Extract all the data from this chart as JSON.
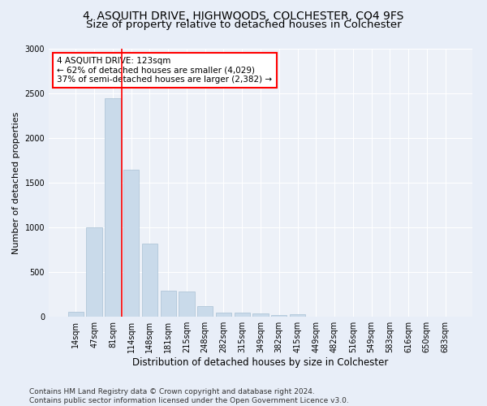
{
  "title": "4, ASQUITH DRIVE, HIGHWOODS, COLCHESTER, CO4 9FS",
  "subtitle": "Size of property relative to detached houses in Colchester",
  "xlabel": "Distribution of detached houses by size in Colchester",
  "ylabel": "Number of detached properties",
  "categories": [
    "14sqm",
    "47sqm",
    "81sqm",
    "114sqm",
    "148sqm",
    "181sqm",
    "215sqm",
    "248sqm",
    "282sqm",
    "315sqm",
    "349sqm",
    "382sqm",
    "415sqm",
    "449sqm",
    "482sqm",
    "516sqm",
    "549sqm",
    "583sqm",
    "616sqm",
    "650sqm",
    "683sqm"
  ],
  "values": [
    55,
    1000,
    2450,
    1650,
    820,
    290,
    285,
    115,
    50,
    50,
    35,
    20,
    30,
    0,
    0,
    0,
    0,
    0,
    0,
    0,
    0
  ],
  "bar_color": "#c9daea",
  "bar_edge_color": "#a8c0d4",
  "vline_x": 2.5,
  "vline_color": "red",
  "annotation_text": "4 ASQUITH DRIVE: 123sqm\n← 62% of detached houses are smaller (4,029)\n37% of semi-detached houses are larger (2,382) →",
  "annotation_box_color": "white",
  "annotation_box_edge_color": "red",
  "ylim": [
    0,
    3000
  ],
  "yticks": [
    0,
    500,
    1000,
    1500,
    2000,
    2500,
    3000
  ],
  "footer_line1": "Contains HM Land Registry data © Crown copyright and database right 2024.",
  "footer_line2": "Contains public sector information licensed under the Open Government Licence v3.0.",
  "bg_color": "#e8eef8",
  "plot_bg_color": "#edf1f8",
  "title_fontsize": 10,
  "subtitle_fontsize": 9.5,
  "tick_fontsize": 7,
  "ylabel_fontsize": 8,
  "xlabel_fontsize": 8.5,
  "annotation_fontsize": 7.5,
  "footer_fontsize": 6.5
}
